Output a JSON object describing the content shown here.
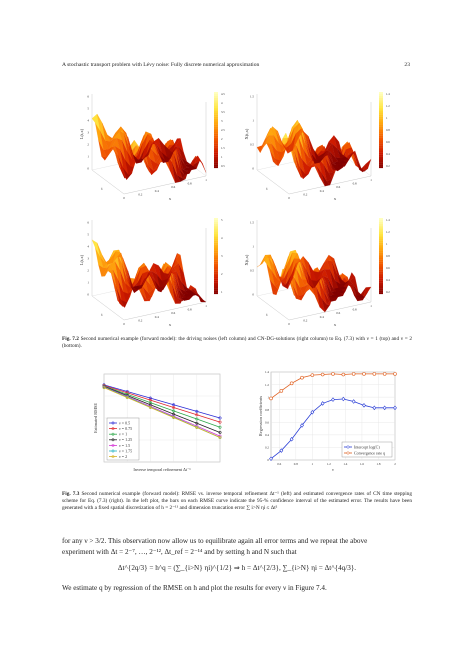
{
  "header": {
    "title": "A stochastic transport problem with Lévy noise: Fully discrete numerical approximation",
    "page_number": "23"
  },
  "fig72": {
    "panels": [
      {
        "zlabel": "L(t,x)",
        "xlabel": "x",
        "ylabel": "t",
        "xticks": [
          "0",
          "0.2",
          "0.4",
          "0.6",
          "0.8",
          "1"
        ],
        "zticks": [
          "6",
          "5",
          "4",
          "3",
          "2",
          "1",
          "0"
        ],
        "cbticks": [
          "4.5",
          "4",
          "3.5",
          "3",
          "2.5",
          "2",
          "1.5",
          "1",
          "0.5"
        ]
      },
      {
        "zlabel": "X(t,x)",
        "xlabel": "x",
        "ylabel": "t",
        "xticks": [
          "0",
          "0.2",
          "0.4",
          "0.6",
          "0.8",
          "1"
        ],
        "zticks": [
          "1.5",
          "1",
          "0.5",
          "0"
        ],
        "cbticks": [
          "1.4",
          "1.2",
          "1",
          "0.8",
          "0.6",
          "0.4",
          "0.2"
        ]
      },
      {
        "zlabel": "L(t,x)",
        "xlabel": "x",
        "ylabel": "t",
        "xticks": [
          "0",
          "0.2",
          "0.4",
          "0.6",
          "0.8",
          "1"
        ],
        "zticks": [
          "6",
          "5",
          "4",
          "3",
          "2",
          "1",
          "0"
        ],
        "cbticks": [
          "5",
          "4",
          "3",
          "2",
          "1"
        ]
      },
      {
        "zlabel": "X(t,x)",
        "xlabel": "x",
        "ylabel": "t",
        "xticks": [
          "0",
          "0.2",
          "0.4",
          "0.6",
          "0.8",
          "1"
        ],
        "zticks": [
          "1.5",
          "1",
          "0.5",
          "0"
        ],
        "cbticks": [
          "1.4",
          "1.2",
          "1",
          "0.8",
          "0.6",
          "0.4",
          "0.2"
        ]
      }
    ],
    "caption_label": "Fig. 7.2",
    "caption_text": "Second numerical example (forward model): the driving noises (left column) and CN-DG-solutions (right column) to Eq. (7.3) with ν = 1 (top) and ν = 2 (bottom)."
  },
  "fig73": {
    "caption_label": "Fig. 7.3",
    "caption_text": "Second numerical example (forward model): RMSE vs. inverse temporal refinement Δt⁻¹ (left) and estimated convergence rates of CN time stepping scheme for Eq. (7.3) (right). In the left plot, the bars on each RMSE curve indicate the 95-% confidence interval of the estimated error. The results have been generated with a fixed spatial discretization of h = 2⁻¹¹ and dimension truncation error ∑ i>N ηi ≤ Δt²"
  },
  "chart_data": [
    {
      "type": "line",
      "xscale": "log",
      "yscale": "log",
      "x": [
        128,
        256,
        512,
        1024,
        2048,
        4096
      ],
      "xlabel": "Inverse temporal refinement Δt⁻¹",
      "ylabel": "Estimated RMSE",
      "ylim": [
        0.0001,
        1
      ],
      "legend_position": "bottom-left",
      "grid": true,
      "series": [
        {
          "name": "ν = 0.5",
          "color": "#2b2bd6",
          "marker": "o",
          "values": [
            0.32,
            0.16,
            0.08,
            0.04,
            0.02,
            0.01
          ]
        },
        {
          "name": "ν = 0.75",
          "color": "#e0262d",
          "marker": "x",
          "values": [
            0.3,
            0.14,
            0.065,
            0.03,
            0.014,
            0.0065
          ]
        },
        {
          "name": "ν = 1",
          "color": "#2ea84a",
          "marker": "+",
          "values": [
            0.28,
            0.12,
            0.05,
            0.021,
            0.009,
            0.0038
          ]
        },
        {
          "name": "ν = 1.25",
          "color": "#222222",
          "marker": "*",
          "values": [
            0.27,
            0.105,
            0.04,
            0.015,
            0.0058,
            0.0022
          ]
        },
        {
          "name": "ν = 1.5",
          "color": "#d533d5",
          "marker": "s",
          "values": [
            0.26,
            0.095,
            0.034,
            0.012,
            0.0043,
            0.0015
          ]
        },
        {
          "name": "ν = 1.75",
          "color": "#24b4c4",
          "marker": "d",
          "values": [
            0.25,
            0.09,
            0.031,
            0.011,
            0.0038,
            0.0013
          ]
        },
        {
          "name": "ν = 2",
          "color": "#d6b324",
          "marker": "v",
          "values": [
            0.24,
            0.085,
            0.03,
            0.0105,
            0.0037,
            0.0013
          ]
        }
      ]
    },
    {
      "type": "line",
      "x": [
        0.5,
        0.625,
        0.75,
        0.875,
        1,
        1.125,
        1.25,
        1.375,
        1.5,
        1.625,
        1.75,
        1.875,
        2
      ],
      "xlabel": "ν",
      "ylabel": "Regression coefficients",
      "xticks": [
        "0.6",
        "0.8",
        "1",
        "1.2",
        "1.4",
        "1.6",
        "1.8",
        "2"
      ],
      "yticks": [
        "0",
        "0.2",
        "0.4",
        "0.6",
        "0.8",
        "1",
        "1.2",
        "1.4"
      ],
      "ylim": [
        0,
        1.4
      ],
      "legend_position": "bottom-right",
      "grid": true,
      "series": [
        {
          "name": "Intercept log(C)",
          "color": "#2b3fd6",
          "marker": "d",
          "values": [
            0.02,
            0.15,
            0.33,
            0.55,
            0.76,
            0.9,
            0.96,
            0.97,
            0.93,
            0.87,
            0.83,
            0.83,
            0.83
          ]
        },
        {
          "name": "Convergence rate q",
          "color": "#e06020",
          "marker": "o",
          "values": [
            0.98,
            1.1,
            1.22,
            1.31,
            1.35,
            1.36,
            1.37,
            1.36,
            1.37,
            1.37,
            1.37,
            1.37,
            1.37
          ]
        }
      ]
    }
  ],
  "text": {
    "para1_a": "for any ν > ",
    "para1_frac": "3/2",
    "para1_b": ". This observation now allow us to equilibrate again all error terms and we repeat the above",
    "para2": "experiment with Δt = 2⁻⁷, …, 2⁻¹², Δt_ref = 2⁻¹⁴ and by setting h and N such that",
    "equation": "Δt^{2q/3} = h^q = (∑_{i>N} ηi)^{1/2} ⇒   h = Δt^{2/3}, ∑_{i>N} ηi = Δt^{4q/3}.",
    "para3": "We estimate q by regression of the RMSE on h and plot the results for every ν in Figure 7.4."
  }
}
